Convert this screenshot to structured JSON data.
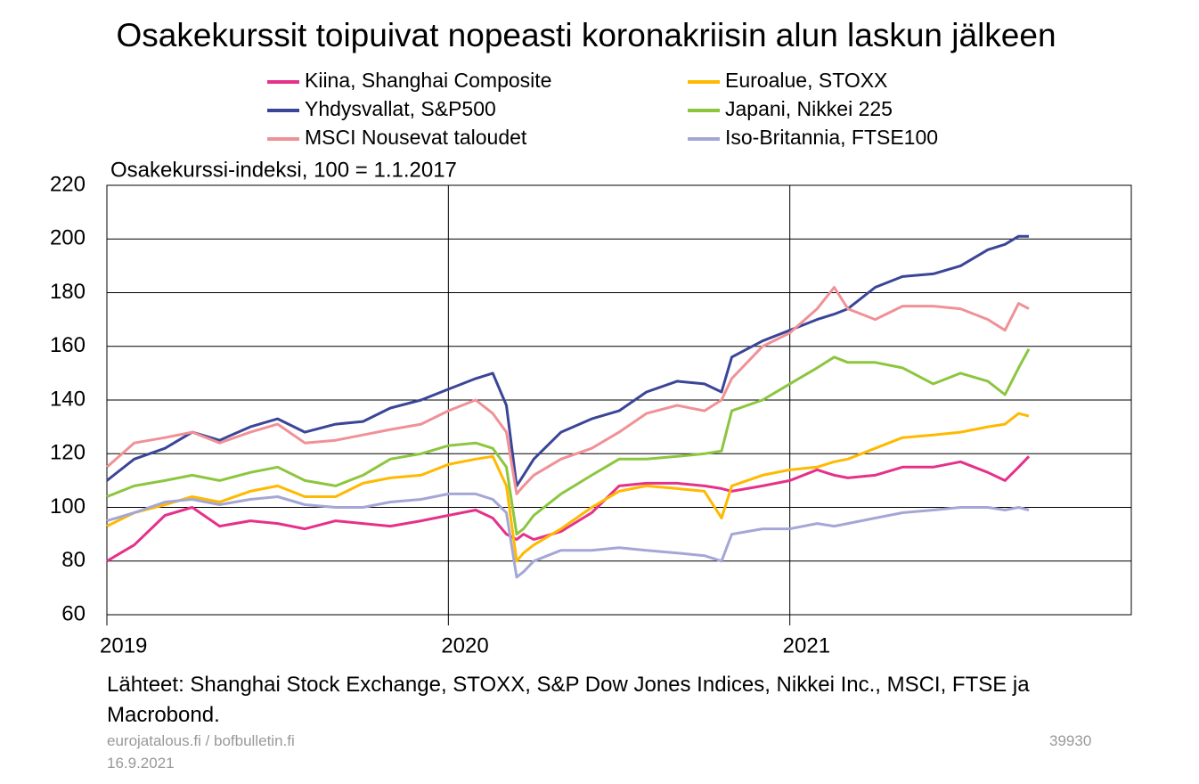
{
  "chart_data": {
    "type": "line",
    "title": "Osakekurssit toipuivat nopeasti koronakriisin alun laskun jälkeen",
    "y_label": "Osakekurssi-indeksi, 100 = 1.1.2017",
    "source": "Lähteet: Shanghai Stock Exchange, STOXX, S&P Dow Jones Indices, Nikkei Inc., MSCI, FTSE ja Macrobond.",
    "footer_site": "eurojatalous.fi  / bofbulletin.fi",
    "footer_date": "16.9.2021",
    "footer_code": "39930",
    "xlim": [
      2019,
      2022
    ],
    "xticks": [
      2019,
      2020,
      2021
    ],
    "ylim": [
      60,
      220
    ],
    "yticks": [
      60,
      80,
      100,
      120,
      140,
      160,
      180,
      200,
      220
    ],
    "grid": true,
    "x": [
      2019.0,
      2019.08,
      2019.17,
      2019.25,
      2019.33,
      2019.42,
      2019.5,
      2019.58,
      2019.67,
      2019.75,
      2019.83,
      2019.92,
      2020.0,
      2020.08,
      2020.13,
      2020.17,
      2020.2,
      2020.22,
      2020.25,
      2020.33,
      2020.42,
      2020.5,
      2020.58,
      2020.67,
      2020.75,
      2020.8,
      2020.83,
      2020.92,
      2021.0,
      2021.08,
      2021.13,
      2021.17,
      2021.25,
      2021.33,
      2021.42,
      2021.5,
      2021.58,
      2021.63,
      2021.67,
      2021.7
    ],
    "series": [
      {
        "name": "Kiina, Shanghai Composite",
        "color": "#e5318a",
        "values": [
          80,
          86,
          97,
          100,
          93,
          95,
          94,
          92,
          95,
          94,
          93,
          95,
          97,
          99,
          96,
          90,
          88,
          90,
          88,
          91,
          98,
          108,
          109,
          109,
          108,
          107,
          106,
          108,
          110,
          114,
          112,
          111,
          112,
          115,
          115,
          117,
          113,
          110,
          115,
          119
        ]
      },
      {
        "name": "Euroalue, STOXX",
        "color": "#ffb900",
        "values": [
          93,
          98,
          101,
          104,
          102,
          106,
          108,
          104,
          104,
          109,
          111,
          112,
          116,
          118,
          119,
          108,
          80,
          83,
          86,
          92,
          100,
          106,
          108,
          107,
          106,
          96,
          108,
          112,
          114,
          115,
          117,
          118,
          122,
          126,
          127,
          128,
          130,
          131,
          135,
          134
        ]
      },
      {
        "name": "Yhdysvallat, S&P500",
        "color": "#3b4597",
        "values": [
          110,
          118,
          122,
          128,
          125,
          130,
          133,
          128,
          131,
          132,
          137,
          140,
          144,
          148,
          150,
          138,
          108,
          112,
          118,
          128,
          133,
          136,
          143,
          147,
          146,
          143,
          156,
          162,
          166,
          170,
          172,
          174,
          182,
          186,
          187,
          190,
          196,
          198,
          201,
          201
        ]
      },
      {
        "name": "Japani, Nikkei 225",
        "color": "#8cc63e",
        "values": [
          104,
          108,
          110,
          112,
          110,
          113,
          115,
          110,
          108,
          112,
          118,
          120,
          123,
          124,
          122,
          115,
          90,
          92,
          97,
          105,
          112,
          118,
          118,
          119,
          120,
          121,
          136,
          140,
          146,
          152,
          156,
          154,
          154,
          152,
          146,
          150,
          147,
          142,
          152,
          159
        ]
      },
      {
        "name": "MSCI Nousevat taloudet",
        "color": "#f09196",
        "values": [
          115,
          124,
          126,
          128,
          124,
          128,
          131,
          124,
          125,
          127,
          129,
          131,
          136,
          140,
          135,
          128,
          105,
          108,
          112,
          118,
          122,
          128,
          135,
          138,
          136,
          140,
          148,
          160,
          165,
          174,
          182,
          174,
          170,
          175,
          175,
          174,
          170,
          166,
          176,
          174
        ]
      },
      {
        "name": "Iso-Britannia, FTSE100",
        "color": "#a4a7d6",
        "values": [
          95,
          98,
          102,
          103,
          101,
          103,
          104,
          101,
          100,
          100,
          102,
          103,
          105,
          105,
          103,
          98,
          74,
          76,
          80,
          84,
          84,
          85,
          84,
          83,
          82,
          80,
          90,
          92,
          92,
          94,
          93,
          94,
          96,
          98,
          99,
          100,
          100,
          99,
          100,
          99
        ]
      }
    ]
  }
}
